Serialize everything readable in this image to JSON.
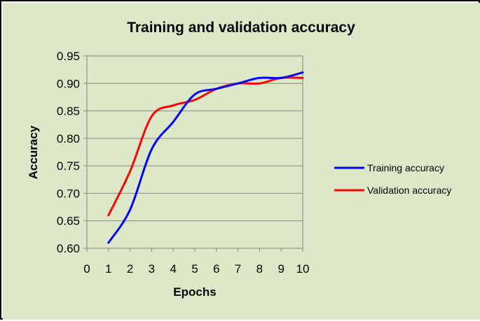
{
  "chart_data": {
    "type": "line",
    "title": "Training and validation accuracy",
    "xlabel": "Epochs",
    "ylabel": "Accuracy",
    "x_ticks": [
      "0",
      "1",
      "2",
      "3",
      "4",
      "5",
      "6",
      "7",
      "8",
      "9",
      "10"
    ],
    "y_ticks": [
      "0.60",
      "0.65",
      "0.70",
      "0.75",
      "0.80",
      "0.85",
      "0.90",
      "0.95"
    ],
    "xlim": [
      0,
      10
    ],
    "ylim": [
      0.6,
      0.95
    ],
    "grid": "horizontal",
    "legend_position": "right",
    "background_color": "#dde8c8",
    "series": [
      {
        "name": "Training accuracy",
        "color": "#0000ff",
        "x": [
          1,
          2,
          3,
          4,
          5,
          6,
          7,
          8,
          9,
          10
        ],
        "values": [
          0.61,
          0.67,
          0.78,
          0.83,
          0.88,
          0.89,
          0.9,
          0.91,
          0.91,
          0.92
        ]
      },
      {
        "name": "Validation accuracy",
        "color": "#ff0000",
        "x": [
          1,
          2,
          3,
          4,
          5,
          6,
          7,
          8,
          9,
          10
        ],
        "values": [
          0.66,
          0.74,
          0.84,
          0.86,
          0.87,
          0.89,
          0.9,
          0.9,
          0.91,
          0.91
        ]
      }
    ]
  }
}
